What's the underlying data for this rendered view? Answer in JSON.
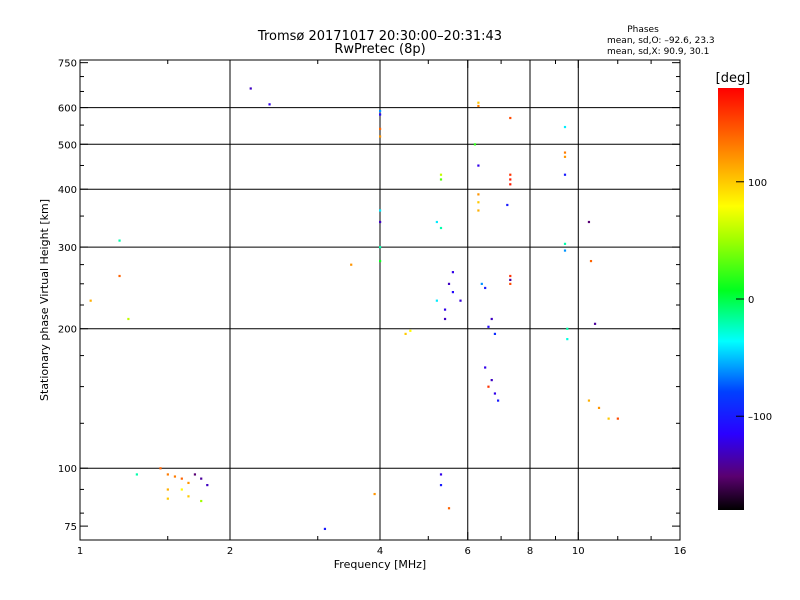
{
  "chart_data": {
    "type": "scatter",
    "title": "Tromsø 20171017 20:30:00–20:31:43",
    "subtitle": "RwPretec (8p)",
    "xlabel": "Frequency [MHz]",
    "ylabel": "Stationary phase Virtual Height [km]",
    "x_scale": "log",
    "y_scale": "log",
    "xlim": [
      1,
      16
    ],
    "ylim": [
      70,
      760
    ],
    "x_ticks": [
      1,
      2,
      4,
      6,
      8,
      10,
      16
    ],
    "x_tick_labels": [
      "1",
      "2",
      "4",
      "6",
      "8",
      "10",
      "16"
    ],
    "x_minor_ticks": [
      1.5,
      3,
      5,
      7,
      9,
      12,
      14
    ],
    "x_gridlines": [
      2,
      4,
      6,
      8,
      10
    ],
    "y_ticks": [
      75,
      100,
      200,
      300,
      400,
      500,
      600,
      750
    ],
    "y_tick_labels": [
      "75",
      "100",
      "200",
      "300",
      "400",
      "500",
      "600",
      "750"
    ],
    "y_minor_ticks": [
      80,
      90,
      125,
      150,
      175,
      225,
      250,
      275,
      350,
      450,
      550,
      650,
      700
    ],
    "y_gridlines": [
      100,
      200,
      300,
      400,
      500,
      600
    ],
    "phase_info": {
      "heading": "Phases",
      "line_o": "mean, sd,O: –92.6, 23.3",
      "line_x": "mean, sd,X:  90.9, 30.1"
    },
    "colorbar": {
      "label": "[deg]",
      "range": [
        -180,
        180
      ],
      "ticks": [
        100,
        0,
        -100
      ],
      "tick_labels": [
        "100",
        "0",
        "–100"
      ]
    },
    "colors": {
      "grid": "#000000",
      "frame": "#000000"
    },
    "points": [
      [
        2.2,
        660,
        -130
      ],
      [
        2.4,
        610,
        -120
      ],
      [
        3.1,
        74,
        -100
      ],
      [
        4.0,
        590,
        -60
      ],
      [
        4.0,
        580,
        -110
      ],
      [
        4.0,
        540,
        140
      ],
      [
        4.0,
        520,
        120
      ],
      [
        4.0,
        360,
        -40
      ],
      [
        4.0,
        340,
        -130
      ],
      [
        4.0,
        300,
        -20
      ],
      [
        4.0,
        280,
        10
      ],
      [
        1.2,
        310,
        -20
      ],
      [
        1.2,
        260,
        140
      ],
      [
        1.05,
        230,
        110
      ],
      [
        1.25,
        210,
        60
      ],
      [
        3.5,
        275,
        120
      ],
      [
        4.5,
        195,
        100
      ],
      [
        4.6,
        198,
        80
      ],
      [
        5.3,
        430,
        60
      ],
      [
        5.3,
        420,
        30
      ],
      [
        5.2,
        340,
        -40
      ],
      [
        5.3,
        330,
        -20
      ],
      [
        5.5,
        250,
        -130
      ],
      [
        5.6,
        240,
        -110
      ],
      [
        5.2,
        230,
        -40
      ],
      [
        5.4,
        220,
        -120
      ],
      [
        5.6,
        265,
        -120
      ],
      [
        5.4,
        210,
        -130
      ],
      [
        5.8,
        230,
        -125
      ],
      [
        6.3,
        615,
        100
      ],
      [
        6.3,
        605,
        130
      ],
      [
        6.3,
        450,
        -120
      ],
      [
        6.3,
        390,
        120
      ],
      [
        6.3,
        375,
        100
      ],
      [
        6.2,
        500,
        20
      ],
      [
        6.3,
        360,
        110
      ],
      [
        7.3,
        570,
        150
      ],
      [
        7.3,
        430,
        160
      ],
      [
        7.3,
        420,
        170
      ],
      [
        7.3,
        410,
        170
      ],
      [
        7.3,
        260,
        160
      ],
      [
        7.3,
        255,
        -140
      ],
      [
        7.3,
        250,
        150
      ],
      [
        7.2,
        370,
        -100
      ],
      [
        6.4,
        250,
        -60
      ],
      [
        6.5,
        245,
        -100
      ],
      [
        6.7,
        210,
        -130
      ],
      [
        6.6,
        202,
        -110
      ],
      [
        6.8,
        195,
        -90
      ],
      [
        6.5,
        165,
        -120
      ],
      [
        6.7,
        155,
        -130
      ],
      [
        6.6,
        150,
        160
      ],
      [
        6.8,
        145,
        -120
      ],
      [
        6.9,
        140,
        -100
      ],
      [
        9.4,
        545,
        -40
      ],
      [
        9.4,
        480,
        130
      ],
      [
        9.4,
        470,
        120
      ],
      [
        9.4,
        430,
        -100
      ],
      [
        9.4,
        305,
        -20
      ],
      [
        9.4,
        295,
        -60
      ],
      [
        10.5,
        340,
        -150
      ],
      [
        10.6,
        280,
        140
      ],
      [
        10.8,
        205,
        -140
      ],
      [
        9.5,
        200,
        -20
      ],
      [
        9.5,
        190,
        -30
      ],
      [
        12.0,
        128,
        150
      ],
      [
        11.0,
        135,
        120
      ],
      [
        10.5,
        140,
        110
      ],
      [
        11.5,
        128,
        100
      ],
      [
        1.3,
        97,
        -20
      ],
      [
        1.45,
        100,
        140
      ],
      [
        1.5,
        97,
        130
      ],
      [
        1.55,
        96,
        130
      ],
      [
        1.6,
        95,
        140
      ],
      [
        1.65,
        93,
        120
      ],
      [
        1.7,
        97,
        -150
      ],
      [
        1.75,
        95,
        -140
      ],
      [
        1.8,
        92,
        -130
      ],
      [
        1.5,
        90,
        110
      ],
      [
        1.6,
        90,
        80
      ],
      [
        1.65,
        87,
        100
      ],
      [
        1.75,
        85,
        50
      ],
      [
        1.5,
        86,
        100
      ],
      [
        5.3,
        92,
        -100
      ],
      [
        5.3,
        97,
        -120
      ],
      [
        5.5,
        82,
        140
      ],
      [
        3.9,
        88,
        120
      ]
    ]
  }
}
